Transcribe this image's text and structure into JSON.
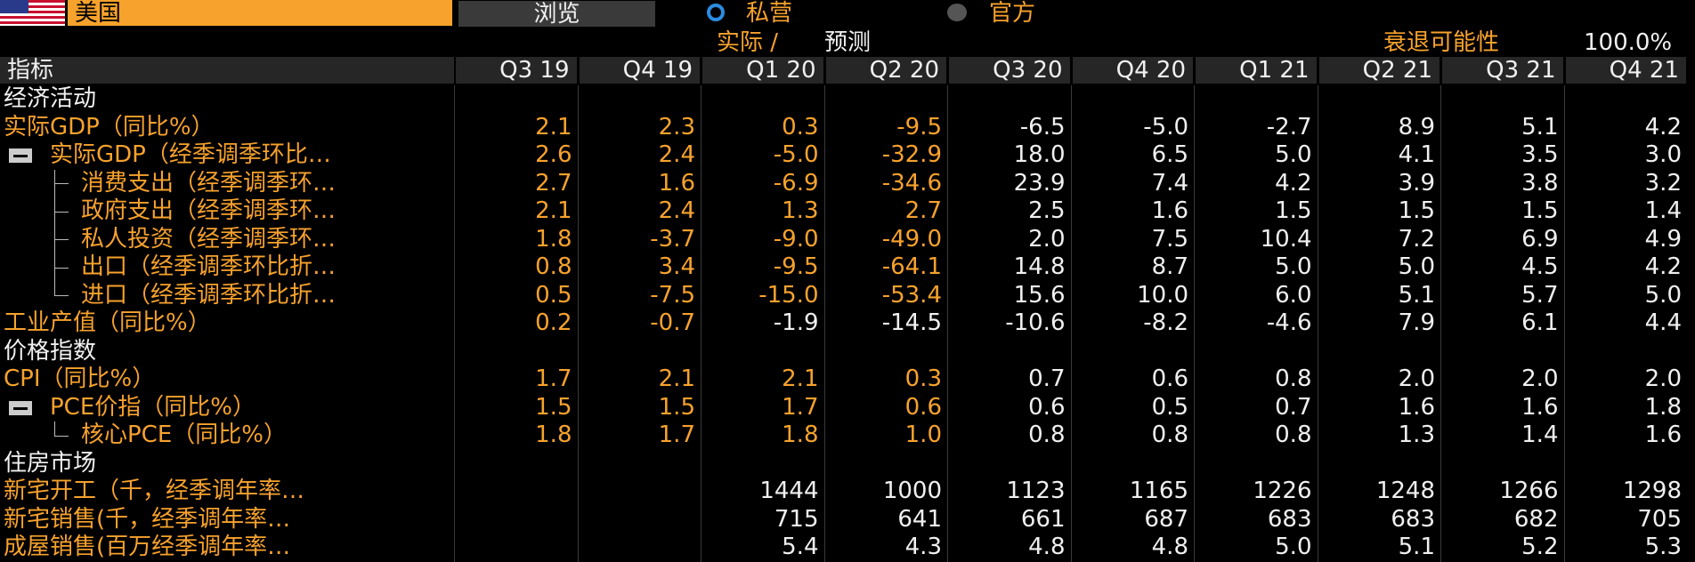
{
  "toolbar": {
    "country": "美国",
    "browse": "浏览",
    "options": [
      "私营",
      "官方"
    ]
  },
  "subheader": {
    "actual": "实际 /",
    "forecast": "预测",
    "recession_label": "衰退可能性",
    "recession_value": "100.0%"
  },
  "table": {
    "header": [
      "指标",
      "Q3 19",
      "Q4 19",
      "Q1 20",
      "Q2 20",
      "Q3 20",
      "Q4 20",
      "Q1 21",
      "Q2 21",
      "Q3 21",
      "Q4 21"
    ],
    "sections": [
      {
        "title": "经济活动",
        "rows": [
          {
            "label": "实际GDP（同比%）",
            "values": [
              "2.1",
              "2.3",
              "0.3",
              "-9.5",
              "-6.5",
              "-5.0",
              "-2.7",
              "8.9",
              "5.1",
              "4.2"
            ]
          },
          {
            "label": "实际GDP（经季调季环比…",
            "values": [
              "2.6",
              "2.4",
              "-5.0",
              "-32.9",
              "18.0",
              "6.5",
              "5.0",
              "4.1",
              "3.5",
              "3.0"
            ]
          },
          {
            "label": "消费支出（经季调季环…",
            "values": [
              "2.7",
              "1.6",
              "-6.9",
              "-34.6",
              "23.9",
              "7.4",
              "4.2",
              "3.9",
              "3.8",
              "3.2"
            ]
          },
          {
            "label": "政府支出（经季调季环…",
            "values": [
              "2.1",
              "2.4",
              "1.3",
              "2.7",
              "2.5",
              "1.6",
              "1.5",
              "1.5",
              "1.5",
              "1.4"
            ]
          },
          {
            "label": "私人投资（经季调季环…",
            "values": [
              "1.8",
              "-3.7",
              "-9.0",
              "-49.0",
              "2.0",
              "7.5",
              "10.4",
              "7.2",
              "6.9",
              "4.9"
            ]
          },
          {
            "label": "出口（经季调季环比折…",
            "values": [
              "0.8",
              "3.4",
              "-9.5",
              "-64.1",
              "14.8",
              "8.7",
              "5.0",
              "5.0",
              "4.5",
              "4.2"
            ]
          },
          {
            "label": "进口（经季调季环比折…",
            "values": [
              "0.5",
              "-7.5",
              "-15.0",
              "-53.4",
              "15.6",
              "10.0",
              "6.0",
              "5.1",
              "5.7",
              "5.0"
            ]
          },
          {
            "label": "工业产值（同比%）",
            "values": [
              "0.2",
              "-0.7",
              "-1.9",
              "-14.5",
              "-10.6",
              "-8.2",
              "-4.6",
              "7.9",
              "6.1",
              "4.4"
            ]
          }
        ]
      },
      {
        "title": "价格指数",
        "rows": [
          {
            "label": "CPI（同比%）",
            "values": [
              "1.7",
              "2.1",
              "2.1",
              "0.3",
              "0.7",
              "0.6",
              "0.8",
              "2.0",
              "2.0",
              "2.0"
            ]
          },
          {
            "label": "PCE价指（同比%）",
            "values": [
              "1.5",
              "1.5",
              "1.7",
              "0.6",
              "0.6",
              "0.5",
              "0.7",
              "1.6",
              "1.6",
              "1.8"
            ]
          },
          {
            "label": "核心PCE（同比%）",
            "values": [
              "1.8",
              "1.7",
              "1.8",
              "1.0",
              "0.8",
              "0.8",
              "0.8",
              "1.3",
              "1.4",
              "1.6"
            ]
          }
        ]
      },
      {
        "title": "住房市场",
        "rows": [
          {
            "label": "新宅开工（千，经季调年率…",
            "values": [
              null,
              null,
              "1444",
              "1000",
              "1123",
              "1165",
              "1226",
              "1248",
              "1266",
              "1298"
            ]
          },
          {
            "label": "新宅销售(千，经季调年率…",
            "values": [
              null,
              null,
              "715",
              "641",
              "661",
              "687",
              "683",
              "683",
              "682",
              "705"
            ]
          },
          {
            "label": "成屋销售(百万经季调年率…",
            "values": [
              null,
              null,
              "5.4",
              "4.3",
              "4.8",
              "4.8",
              "5.0",
              "5.1",
              "5.2",
              "5.3"
            ]
          }
        ]
      }
    ]
  }
}
